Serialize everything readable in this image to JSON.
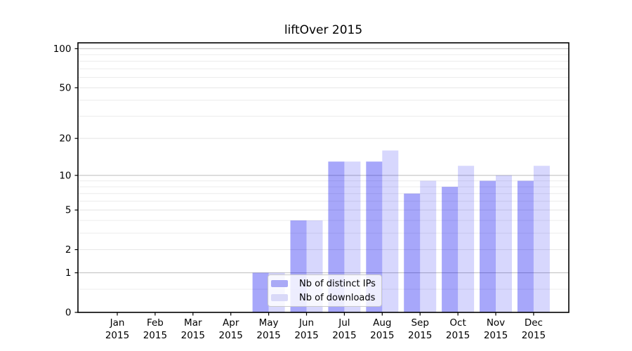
{
  "chart_data": {
    "type": "bar",
    "title": "liftOver 2015",
    "categories": [
      "Jan 2015",
      "Feb 2015",
      "Mar 2015",
      "Apr 2015",
      "May 2015",
      "Jun 2015",
      "Jul 2015",
      "Aug 2015",
      "Sep 2015",
      "Oct 2015",
      "Nov 2015",
      "Dec 2015"
    ],
    "series": [
      {
        "name": "Nb of distinct IPs",
        "color": "#a9a9f6",
        "bar_fill": "rgba(0,0,240,0.345)",
        "values": [
          0,
          0,
          0,
          0,
          1,
          4,
          13,
          13,
          7,
          8,
          9,
          9
        ]
      },
      {
        "name": "Nb of downloads",
        "color": "#d9d9f8",
        "bar_fill": "rgba(0,0,240,0.155)",
        "values": [
          0,
          0,
          0,
          0,
          1,
          4,
          13,
          16,
          9,
          12,
          10,
          12
        ]
      }
    ],
    "xlabel": "",
    "ylabel": "",
    "yaxis": {
      "scale": "log1p",
      "ticks": [
        0,
        1,
        2,
        5,
        10,
        20,
        50,
        100
      ],
      "emphasized_gridlines": [
        1,
        10,
        100
      ],
      "minor_gridlines": [
        0.5,
        3,
        4,
        6,
        7,
        8,
        9,
        30,
        40,
        60,
        70,
        80,
        90
      ],
      "range": [
        0,
        111
      ]
    },
    "grid": true,
    "legend_position": "lower center-left inside plot",
    "colors": {
      "major_grid": "#c4c4c4",
      "minor_grid": "#ececec",
      "labeled_grid": "#e4e4e4",
      "spine": "#000000",
      "text": "#000000"
    }
  }
}
